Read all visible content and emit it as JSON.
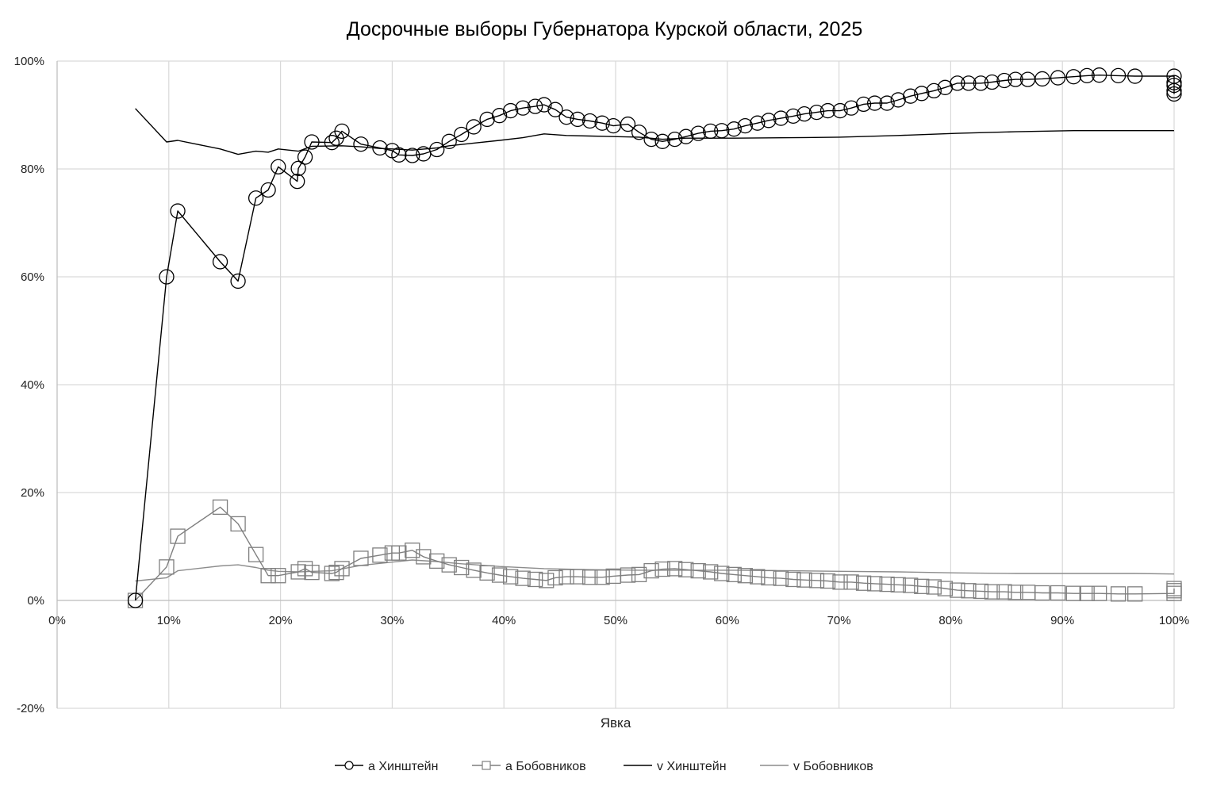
{
  "chart_data": {
    "type": "line",
    "title": "Досрочные выборы Губернатора Курской области, 2025",
    "xlabel": "Явка",
    "ylabel": "",
    "xlim": [
      0,
      100
    ],
    "ylim": [
      -20,
      100
    ],
    "x_ticks": [
      "0%",
      "10%",
      "20%",
      "30%",
      "40%",
      "50%",
      "60%",
      "70%",
      "80%",
      "90%",
      "100%"
    ],
    "y_ticks": [
      "-20%",
      "0%",
      "20%",
      "40%",
      "60%",
      "80%",
      "100%"
    ],
    "grid": true,
    "legend_position": "bottom",
    "series": [
      {
        "name": "а Хинштейн",
        "marker": "circle",
        "color": "#000000",
        "points": [
          [
            7,
            0
          ],
          [
            9.8,
            60
          ],
          [
            10.8,
            72.2
          ],
          [
            14.6,
            62.8
          ],
          [
            16.2,
            59.2
          ],
          [
            17.8,
            74.6
          ],
          [
            18.9,
            76.1
          ],
          [
            19.8,
            80.4
          ],
          [
            21.5,
            77.7
          ],
          [
            21.6,
            80.1
          ],
          [
            22.2,
            82.2
          ],
          [
            22.8,
            85
          ],
          [
            24.6,
            84.9
          ],
          [
            25,
            85.7
          ],
          [
            25.5,
            87
          ],
          [
            27.2,
            84.6
          ],
          [
            28.9,
            83.9
          ],
          [
            30,
            83.4
          ],
          [
            30.6,
            82.6
          ],
          [
            31.8,
            82.5
          ],
          [
            32.8,
            82.8
          ],
          [
            34,
            83.6
          ],
          [
            35.1,
            85.1
          ],
          [
            36.2,
            86.4
          ],
          [
            37.3,
            87.8
          ],
          [
            38.5,
            89.2
          ],
          [
            39.6,
            89.9
          ],
          [
            40.6,
            90.8
          ],
          [
            41.7,
            91.3
          ],
          [
            42.8,
            91.6
          ],
          [
            43.6,
            91.9
          ],
          [
            44.6,
            91
          ],
          [
            45.6,
            89.6
          ],
          [
            46.6,
            89.2
          ],
          [
            47.7,
            88.9
          ],
          [
            48.8,
            88.5
          ],
          [
            49.8,
            88
          ],
          [
            51.1,
            88.3
          ],
          [
            52.1,
            86.8
          ],
          [
            53.2,
            85.5
          ],
          [
            54.2,
            85.1
          ],
          [
            55.3,
            85.5
          ],
          [
            56.3,
            86
          ],
          [
            57.4,
            86.6
          ],
          [
            58.5,
            87
          ],
          [
            59.5,
            87.1
          ],
          [
            60.6,
            87.4
          ],
          [
            61.6,
            88
          ],
          [
            62.7,
            88.5
          ],
          [
            63.7,
            89
          ],
          [
            64.8,
            89.4
          ],
          [
            65.9,
            89.8
          ],
          [
            66.9,
            90.2
          ],
          [
            68,
            90.5
          ],
          [
            69,
            90.8
          ],
          [
            70.1,
            90.8
          ],
          [
            71.1,
            91.3
          ],
          [
            72.2,
            92
          ],
          [
            73.2,
            92.2
          ],
          [
            74.3,
            92.2
          ],
          [
            75.3,
            92.8
          ],
          [
            76.4,
            93.5
          ],
          [
            77.4,
            94
          ],
          [
            78.5,
            94.5
          ],
          [
            79.5,
            95.1
          ],
          [
            80.6,
            95.9
          ],
          [
            81.6,
            95.9
          ],
          [
            82.7,
            95.9
          ],
          [
            83.7,
            96.1
          ],
          [
            84.8,
            96.4
          ],
          [
            85.8,
            96.6
          ],
          [
            86.9,
            96.6
          ],
          [
            88.2,
            96.7
          ],
          [
            89.6,
            96.9
          ],
          [
            91,
            97.1
          ],
          [
            92.2,
            97.3
          ],
          [
            93.3,
            97.4
          ],
          [
            95,
            97.3
          ],
          [
            96.5,
            97.2
          ],
          [
            100,
            97.2
          ],
          [
            100,
            96
          ],
          [
            100,
            95.5
          ],
          [
            100,
            94.5
          ],
          [
            100,
            93.9
          ]
        ]
      },
      {
        "name": "а Бобовников",
        "marker": "square",
        "color": "#7f7f7f",
        "points": [
          [
            7,
            0
          ],
          [
            9.8,
            6.2
          ],
          [
            10.8,
            11.9
          ],
          [
            14.6,
            17.3
          ],
          [
            16.2,
            14.2
          ],
          [
            17.8,
            8.5
          ],
          [
            18.9,
            4.6
          ],
          [
            19.8,
            4.6
          ],
          [
            21.6,
            5.3
          ],
          [
            22.2,
            5.9
          ],
          [
            22.8,
            5.2
          ],
          [
            24.6,
            5
          ],
          [
            25,
            5.2
          ],
          [
            25.5,
            5.9
          ],
          [
            27.2,
            7.8
          ],
          [
            28.9,
            8.4
          ],
          [
            30,
            8.8
          ],
          [
            30.6,
            8.8
          ],
          [
            31.8,
            9.3
          ],
          [
            32.8,
            8.1
          ],
          [
            34,
            7.3
          ],
          [
            35.1,
            6.6
          ],
          [
            36.2,
            6.1
          ],
          [
            37.3,
            5.6
          ],
          [
            38.5,
            5.1
          ],
          [
            39.6,
            4.7
          ],
          [
            40.6,
            4.4
          ],
          [
            41.7,
            4.1
          ],
          [
            42.8,
            3.9
          ],
          [
            43.8,
            3.7
          ],
          [
            44.6,
            4.2
          ],
          [
            45.6,
            4.4
          ],
          [
            46.6,
            4.4
          ],
          [
            47.7,
            4.3
          ],
          [
            48.8,
            4.3
          ],
          [
            49.8,
            4.5
          ],
          [
            51.1,
            4.7
          ],
          [
            52.1,
            4.8
          ],
          [
            53.2,
            5.5
          ],
          [
            54.2,
            5.8
          ],
          [
            55.3,
            5.9
          ],
          [
            56.3,
            5.7
          ],
          [
            57.4,
            5.5
          ],
          [
            58.5,
            5.3
          ],
          [
            59.5,
            5
          ],
          [
            60.6,
            4.8
          ],
          [
            61.6,
            4.6
          ],
          [
            62.7,
            4.4
          ],
          [
            63.7,
            4.2
          ],
          [
            64.8,
            4.1
          ],
          [
            65.9,
            3.9
          ],
          [
            66.9,
            3.8
          ],
          [
            68,
            3.7
          ],
          [
            69,
            3.6
          ],
          [
            70.1,
            3.4
          ],
          [
            71.1,
            3.4
          ],
          [
            72.2,
            3.2
          ],
          [
            73.2,
            3.1
          ],
          [
            74.3,
            3
          ],
          [
            75.3,
            2.9
          ],
          [
            76.4,
            2.8
          ],
          [
            77.4,
            2.6
          ],
          [
            78.5,
            2.5
          ],
          [
            79.5,
            2.2
          ],
          [
            80.6,
            1.9
          ],
          [
            81.6,
            1.8
          ],
          [
            82.7,
            1.7
          ],
          [
            83.7,
            1.6
          ],
          [
            84.8,
            1.6
          ],
          [
            85.8,
            1.5
          ],
          [
            86.9,
            1.5
          ],
          [
            88.2,
            1.4
          ],
          [
            89.6,
            1.4
          ],
          [
            91,
            1.3
          ],
          [
            92.2,
            1.3
          ],
          [
            93.3,
            1.3
          ],
          [
            95,
            1.2
          ],
          [
            96.5,
            1.2
          ],
          [
            100,
            1.3
          ],
          [
            100,
            1.8
          ],
          [
            100,
            2.2
          ]
        ]
      },
      {
        "name": "v Хинштейн",
        "marker": "none",
        "color": "#000000",
        "points": [
          [
            7,
            91.2
          ],
          [
            9.8,
            85
          ],
          [
            10.8,
            85.3
          ],
          [
            14.6,
            83.7
          ],
          [
            16.2,
            82.7
          ],
          [
            17.8,
            83.3
          ],
          [
            18.9,
            83.1
          ],
          [
            19.8,
            83.7
          ],
          [
            21.6,
            83.3
          ],
          [
            22.8,
            84.2
          ],
          [
            25.5,
            84.3
          ],
          [
            27.2,
            84.1
          ],
          [
            28.9,
            83.8
          ],
          [
            30,
            83.7
          ],
          [
            31.8,
            83.5
          ],
          [
            34,
            83.9
          ],
          [
            35.1,
            84.3
          ],
          [
            37.3,
            84.8
          ],
          [
            39.6,
            85.3
          ],
          [
            41.7,
            85.8
          ],
          [
            43.6,
            86.5
          ],
          [
            45.6,
            86.2
          ],
          [
            47.7,
            86.1
          ],
          [
            49.8,
            86
          ],
          [
            52.1,
            85.9
          ],
          [
            54.2,
            85.5
          ],
          [
            56.3,
            85.7
          ],
          [
            60.6,
            85.7
          ],
          [
            65.9,
            85.8
          ],
          [
            70.1,
            85.9
          ],
          [
            75.3,
            86.2
          ],
          [
            80.6,
            86.6
          ],
          [
            85.8,
            86.9
          ],
          [
            91,
            87.1
          ],
          [
            96.5,
            87.1
          ],
          [
            100,
            87.1
          ]
        ]
      },
      {
        "name": "v Бобовников",
        "marker": "none",
        "color": "#8c8c8c",
        "points": [
          [
            7,
            3.6
          ],
          [
            9.8,
            4.2
          ],
          [
            10.8,
            5.5
          ],
          [
            14.6,
            6.4
          ],
          [
            16.2,
            6.6
          ],
          [
            17.8,
            6.1
          ],
          [
            18.9,
            5.6
          ],
          [
            19.8,
            5.4
          ],
          [
            21.6,
            5.3
          ],
          [
            24.6,
            5.5
          ],
          [
            27.2,
            6.5
          ],
          [
            30,
            7.1
          ],
          [
            31.8,
            7.5
          ],
          [
            34,
            7.2
          ],
          [
            36.2,
            6.8
          ],
          [
            39.6,
            6.3
          ],
          [
            43.6,
            5.9
          ],
          [
            47.7,
            5.7
          ],
          [
            52.1,
            5.6
          ],
          [
            56.3,
            5.6
          ],
          [
            60.6,
            5.6
          ],
          [
            65.9,
            5.5
          ],
          [
            70.1,
            5.4
          ],
          [
            75.3,
            5.3
          ],
          [
            80.6,
            5.1
          ],
          [
            85.8,
            5
          ],
          [
            91,
            5
          ],
          [
            96.5,
            5
          ],
          [
            100,
            4.9
          ]
        ]
      }
    ]
  }
}
